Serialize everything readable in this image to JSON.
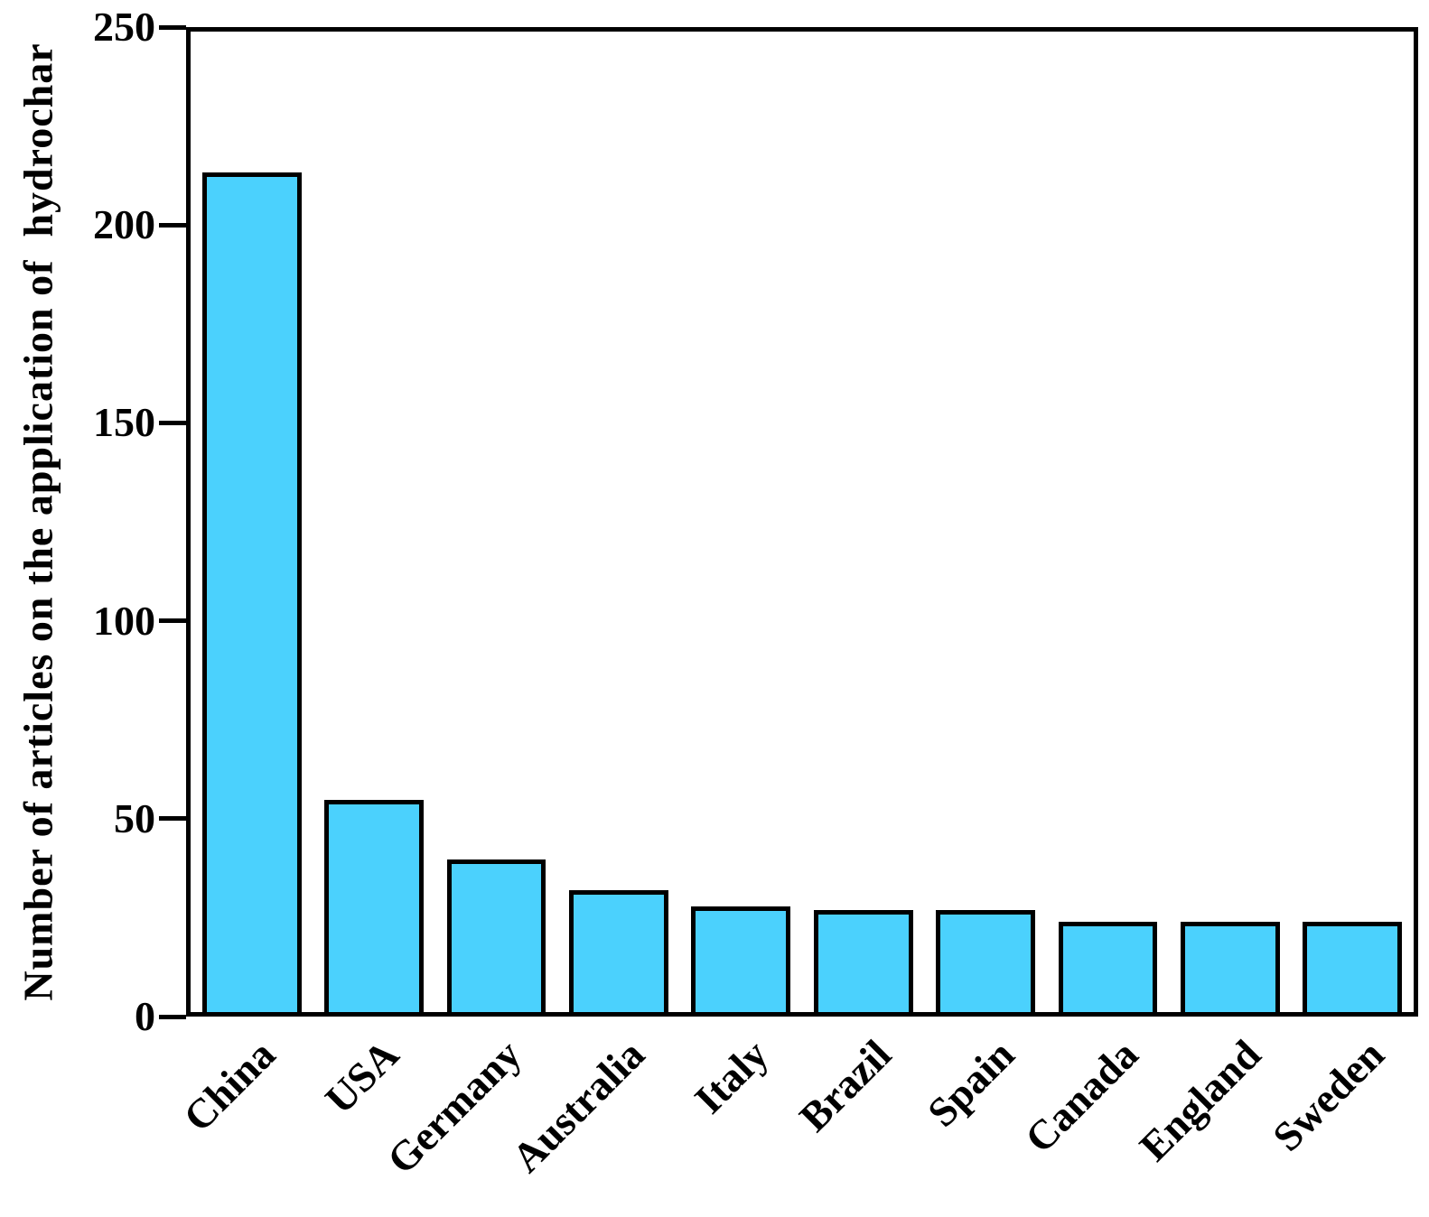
{
  "chart_data": {
    "type": "bar",
    "title": "",
    "xlabel": "",
    "ylabel": "Number of articles on the application of  hydrochar",
    "categories": [
      "China",
      "USA",
      "Germany",
      "Australia",
      "Italy",
      "Brazil",
      "Spain",
      "Canada",
      "England",
      "Sweden"
    ],
    "values": [
      214,
      54,
      39,
      31,
      27,
      26,
      26,
      23,
      23,
      23
    ],
    "ylim": [
      0,
      250
    ],
    "yticks": [
      0,
      50,
      100,
      150,
      200,
      250
    ],
    "grid": false,
    "legend_position": "none",
    "bar_fill_color": "#4BD1FD",
    "bar_edge_color": "#000000",
    "axis_color": "#000000",
    "background_color": "#FFFFFF"
  }
}
